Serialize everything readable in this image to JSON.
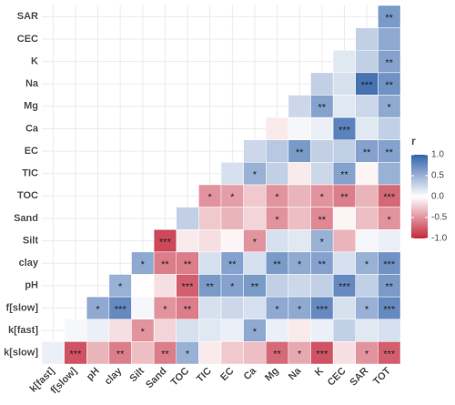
{
  "chart_data": {
    "type": "heatmap",
    "x": [
      "k[fast]",
      "f[slow]",
      "pH",
      "clay",
      "Silt",
      "Sand",
      "TOC",
      "TIC",
      "EC",
      "Ca",
      "Mg",
      "Na",
      "K",
      "CEC",
      "SAR",
      "TOT"
    ],
    "y": [
      "SAR",
      "CEC",
      "K",
      "Na",
      "Mg",
      "Ca",
      "EC",
      "TIC",
      "TOC",
      "Sand",
      "Silt",
      "clay",
      "pH",
      "f[slow]",
      "k[fast]",
      "k[slow]"
    ],
    "z": [
      [
        null,
        null,
        null,
        null,
        null,
        null,
        null,
        null,
        null,
        null,
        null,
        null,
        null,
        null,
        null,
        0.65
      ],
      [
        null,
        null,
        null,
        null,
        null,
        null,
        null,
        null,
        null,
        null,
        null,
        null,
        null,
        null,
        0.3,
        0.55
      ],
      [
        null,
        null,
        null,
        null,
        null,
        null,
        null,
        null,
        null,
        null,
        null,
        null,
        null,
        0.15,
        0.3,
        0.6
      ],
      [
        null,
        null,
        null,
        null,
        null,
        null,
        null,
        null,
        null,
        null,
        null,
        null,
        0.3,
        0.2,
        0.9,
        0.7
      ],
      [
        null,
        null,
        null,
        null,
        null,
        null,
        null,
        null,
        null,
        null,
        null,
        0.25,
        0.6,
        0.15,
        0.25,
        0.55
      ],
      [
        null,
        null,
        null,
        null,
        null,
        null,
        null,
        null,
        null,
        null,
        -0.1,
        0.05,
        0.1,
        0.8,
        0.15,
        0.3
      ],
      [
        null,
        null,
        null,
        null,
        null,
        null,
        null,
        null,
        null,
        0.25,
        0.35,
        0.65,
        0.3,
        0.3,
        0.6,
        0.6
      ],
      [
        null,
        null,
        null,
        null,
        null,
        null,
        null,
        null,
        0.2,
        0.5,
        0.3,
        -0.1,
        0.25,
        0.6,
        -0.05,
        0.5
      ],
      [
        null,
        null,
        null,
        null,
        null,
        null,
        null,
        -0.5,
        -0.45,
        -0.25,
        -0.5,
        -0.35,
        -0.5,
        -0.6,
        -0.35,
        -0.7
      ],
      [
        null,
        null,
        null,
        null,
        null,
        null,
        0.3,
        -0.25,
        -0.35,
        -0.2,
        -0.5,
        -0.3,
        -0.55,
        -0.05,
        -0.3,
        -0.5
      ],
      [
        null,
        null,
        null,
        null,
        null,
        -0.85,
        -0.1,
        -0.15,
        -0.05,
        -0.5,
        0.2,
        0.15,
        0.5,
        -0.35,
        0.05,
        0.1
      ],
      [
        null,
        null,
        null,
        null,
        0.55,
        -0.6,
        -0.6,
        0.2,
        0.6,
        0.2,
        0.65,
        0.55,
        0.6,
        0.2,
        0.5,
        0.7
      ],
      [
        null,
        null,
        null,
        0.5,
        0.0,
        -0.15,
        -0.75,
        0.65,
        0.6,
        0.65,
        0.3,
        0.25,
        0.3,
        0.75,
        0.3,
        0.65
      ],
      [
        null,
        null,
        0.55,
        0.75,
        0.05,
        -0.5,
        -0.6,
        0.2,
        0.25,
        0.2,
        0.55,
        0.55,
        0.75,
        0.2,
        0.5,
        0.75
      ],
      [
        null,
        0.05,
        0.1,
        -0.15,
        -0.5,
        -0.2,
        0.2,
        0.15,
        0.1,
        0.55,
        0.1,
        -0.1,
        0.1,
        0.3,
        0.15,
        0.2
      ],
      [
        0.1,
        -0.8,
        -0.35,
        -0.6,
        -0.3,
        -0.6,
        0.5,
        -0.1,
        -0.25,
        -0.3,
        -0.7,
        -0.4,
        -0.8,
        -0.15,
        -0.5,
        -0.75
      ]
    ],
    "significance": [
      [
        null,
        null,
        null,
        null,
        null,
        null,
        null,
        null,
        null,
        null,
        null,
        null,
        null,
        null,
        null,
        "**"
      ],
      [
        null,
        null,
        null,
        null,
        null,
        null,
        null,
        null,
        null,
        null,
        null,
        null,
        null,
        null,
        null,
        null
      ],
      [
        null,
        null,
        null,
        null,
        null,
        null,
        null,
        null,
        null,
        null,
        null,
        null,
        null,
        null,
        null,
        "**"
      ],
      [
        null,
        null,
        null,
        null,
        null,
        null,
        null,
        null,
        null,
        null,
        null,
        null,
        null,
        null,
        "***",
        "**"
      ],
      [
        null,
        null,
        null,
        null,
        null,
        null,
        null,
        null,
        null,
        null,
        null,
        null,
        "**",
        null,
        null,
        "*"
      ],
      [
        null,
        null,
        null,
        null,
        null,
        null,
        null,
        null,
        null,
        null,
        null,
        null,
        null,
        "***",
        null,
        null
      ],
      [
        null,
        null,
        null,
        null,
        null,
        null,
        null,
        null,
        null,
        null,
        null,
        "**",
        null,
        null,
        "**",
        "**"
      ],
      [
        null,
        null,
        null,
        null,
        null,
        null,
        null,
        null,
        null,
        "*",
        null,
        null,
        null,
        "**",
        null,
        null
      ],
      [
        null,
        null,
        null,
        null,
        null,
        null,
        null,
        "*",
        "*",
        null,
        "*",
        null,
        "*",
        "**",
        null,
        "***"
      ],
      [
        null,
        null,
        null,
        null,
        null,
        null,
        null,
        null,
        null,
        null,
        "*",
        null,
        "**",
        null,
        null,
        "*"
      ],
      [
        null,
        null,
        null,
        null,
        null,
        "***",
        null,
        null,
        null,
        "*",
        null,
        null,
        "*",
        null,
        null,
        null
      ],
      [
        null,
        null,
        null,
        null,
        "*",
        "**",
        "**",
        null,
        "**",
        null,
        "**",
        "*",
        "**",
        null,
        "*",
        "***"
      ],
      [
        null,
        null,
        null,
        "*",
        null,
        null,
        "***",
        "**",
        "*",
        "**",
        null,
        null,
        null,
        "***",
        null,
        "**"
      ],
      [
        null,
        null,
        "*",
        "***",
        null,
        "*",
        "**",
        null,
        null,
        null,
        "*",
        "*",
        "***",
        null,
        "*",
        "***"
      ],
      [
        null,
        null,
        null,
        null,
        "*",
        null,
        null,
        null,
        null,
        "*",
        null,
        null,
        null,
        null,
        null,
        null
      ],
      [
        null,
        "***",
        null,
        "**",
        null,
        "**",
        "*",
        null,
        null,
        null,
        "**",
        "*",
        "***",
        null,
        "*",
        "***"
      ]
    ],
    "colorbar_title": "r",
    "zlim": [
      -1,
      1
    ],
    "colors": [
      "#c4283c",
      "#ffffff",
      "#3363ab"
    ],
    "zticks": [
      {
        "value": 1,
        "label": "1.0"
      },
      0.5,
      {
        "value": 0,
        "label": "0.0"
      },
      -0.5,
      {
        "value": -1,
        "label": "-1.0"
      }
    ]
  }
}
